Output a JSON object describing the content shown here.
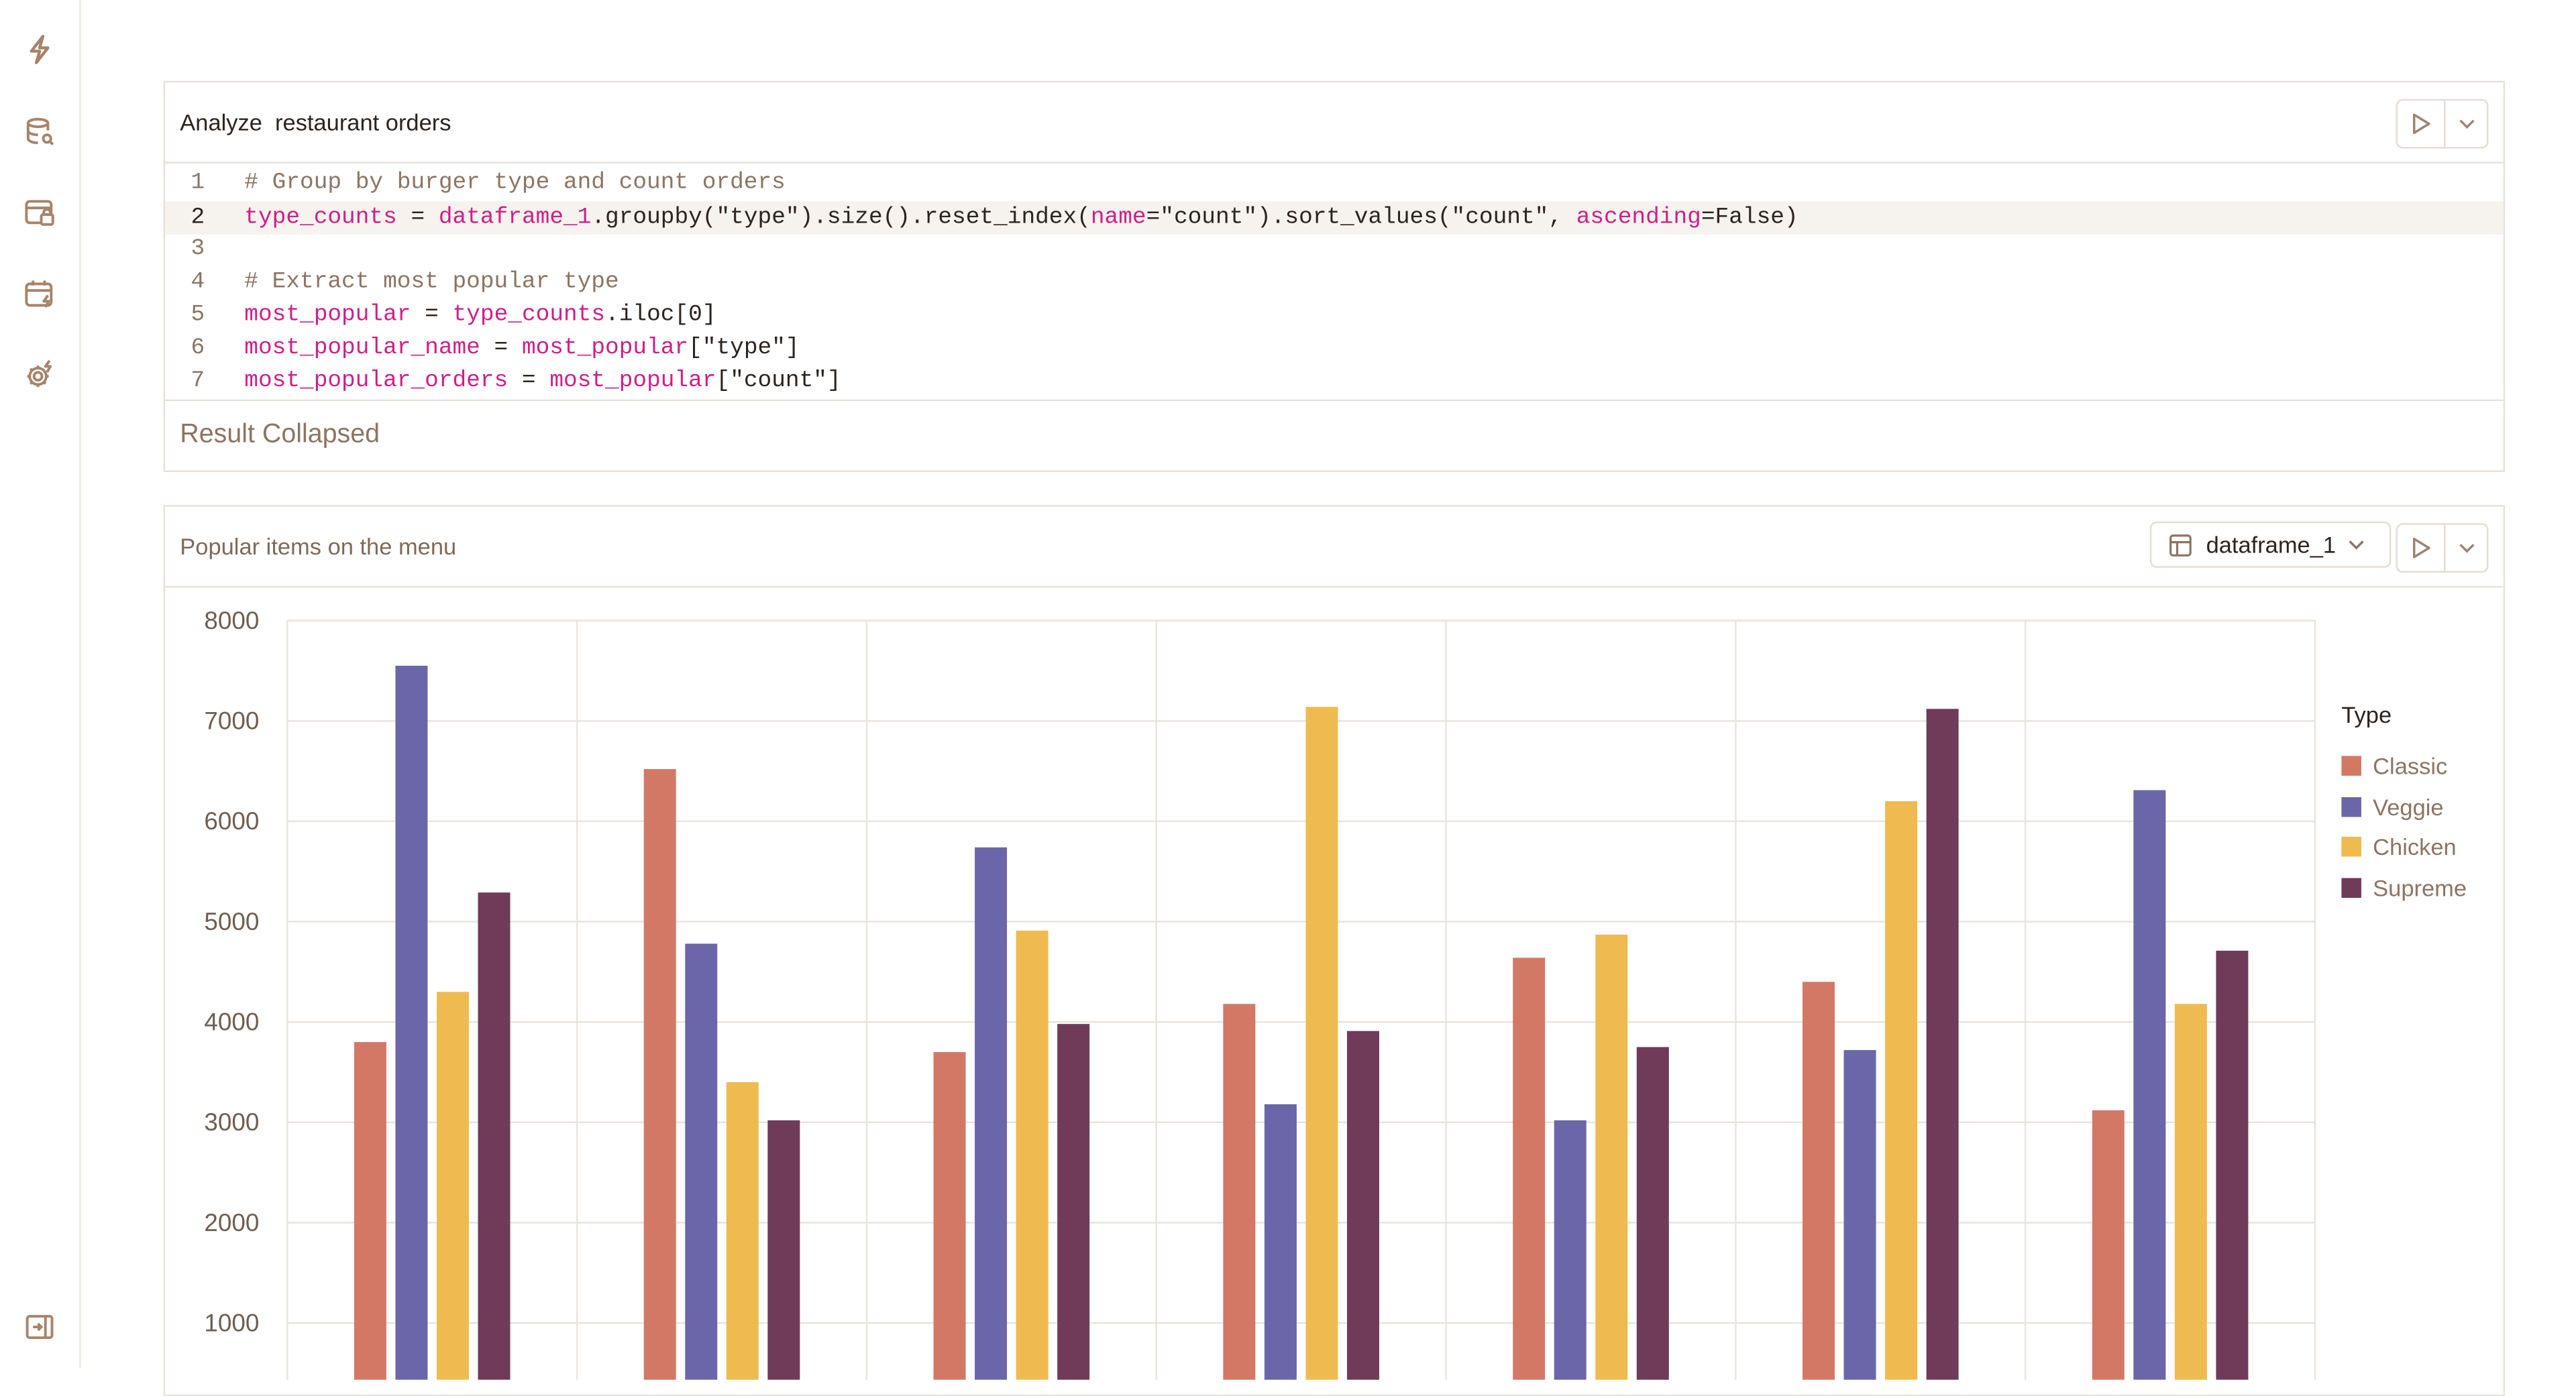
{
  "sidebar": {
    "icons": [
      "bolt-icon",
      "database-search-icon",
      "browser-lock-icon",
      "calendar-bolt-icon",
      "gear-bolt-icon"
    ],
    "bottom_icon": "collapse-sidebar-icon"
  },
  "cell1": {
    "title": "Analyze  restaurant orders",
    "code_lines": [
      {
        "n": "1",
        "html_parts": [
          {
            "t": "# Group by burger type and count orders",
            "c": "cm"
          }
        ]
      },
      {
        "n": "2",
        "html_parts": [
          {
            "t": "type_counts",
            "c": "var"
          },
          {
            "t": " = ",
            "c": ""
          },
          {
            "t": "dataframe_1",
            "c": "var"
          },
          {
            "t": ".groupby(\"type\").size().reset_index(",
            "c": ""
          },
          {
            "t": "name",
            "c": "var"
          },
          {
            "t": "=\"count\").sort_values(\"count\", ",
            "c": ""
          },
          {
            "t": "ascending",
            "c": "var"
          },
          {
            "t": "=False)",
            "c": ""
          }
        ]
      },
      {
        "n": "3",
        "html_parts": []
      },
      {
        "n": "4",
        "html_parts": [
          {
            "t": "# Extract most popular type",
            "c": "cm"
          }
        ]
      },
      {
        "n": "5",
        "html_parts": [
          {
            "t": "most_popular",
            "c": "var"
          },
          {
            "t": " = ",
            "c": ""
          },
          {
            "t": "type_counts",
            "c": "var"
          },
          {
            "t": ".iloc[0]",
            "c": ""
          }
        ]
      },
      {
        "n": "6",
        "html_parts": [
          {
            "t": "most_popular_name",
            "c": "var"
          },
          {
            "t": " = ",
            "c": ""
          },
          {
            "t": "most_popular",
            "c": "var"
          },
          {
            "t": "[\"type\"]",
            "c": ""
          }
        ]
      },
      {
        "n": "7",
        "html_parts": [
          {
            "t": "most_popular_orders",
            "c": "var"
          },
          {
            "t": " = ",
            "c": ""
          },
          {
            "t": "most_popular",
            "c": "var"
          },
          {
            "t": "[\"count\"]",
            "c": ""
          }
        ]
      }
    ],
    "active_line": 2,
    "result_text": "Result Collapsed"
  },
  "cell2": {
    "title": "Popular items on the menu",
    "dataframe_label": "dataframe_1"
  },
  "colors": {
    "Classic": "#d47866",
    "Veggie": "#6b66a9",
    "Chicken": "#efbb50",
    "Supreme": "#6f3b59",
    "grid": "#e9e4dd",
    "tick": "#6f5e52"
  },
  "chart_data": {
    "type": "bar",
    "legend_title": "Type",
    "legend_position": "right",
    "grid": true,
    "ylim": [
      0,
      8000
    ],
    "yticks": [
      "8000",
      "7000",
      "6000",
      "5000",
      "4000",
      "3000",
      "2000",
      "1000"
    ],
    "categories": [
      "",
      "",
      "",
      "",
      "",
      "",
      ""
    ],
    "series": [
      {
        "name": "Classic",
        "values": [
          3800,
          6520,
          3700,
          4180,
          4640,
          4400,
          3120
        ]
      },
      {
        "name": "Veggie",
        "values": [
          7550,
          4780,
          5740,
          3180,
          3020,
          3720,
          6310
        ]
      },
      {
        "name": "Chicken",
        "values": [
          4300,
          3400,
          4910,
          7140,
          4870,
          6200,
          4180
        ]
      },
      {
        "name": "Supreme",
        "values": [
          5290,
          3020,
          3980,
          3910,
          3750,
          7120,
          4710
        ]
      }
    ]
  }
}
